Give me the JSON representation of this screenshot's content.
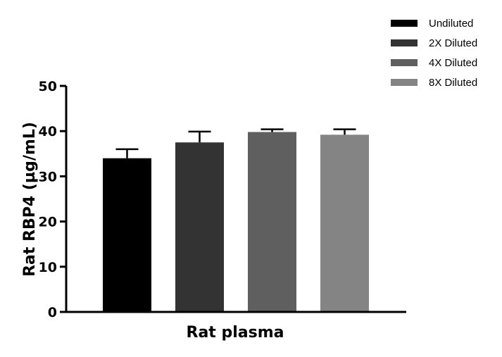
{
  "chart_data": {
    "type": "bar",
    "categories": [
      "Rat plasma"
    ],
    "series": [
      {
        "name": "Undiluted",
        "value": 34.0,
        "error": 2.0,
        "color": "#000000"
      },
      {
        "name": "2X Diluted",
        "value": 37.5,
        "error": 2.4,
        "color": "#333333"
      },
      {
        "name": "4X Diluted",
        "value": 39.8,
        "error": 0.6,
        "color": "#5f5f5f"
      },
      {
        "name": "8X Diluted",
        "value": 39.2,
        "error": 1.2,
        "color": "#848484"
      }
    ],
    "xlabel": "Rat plasma",
    "ylabel": "Rat RBP4 (µg/mL)",
    "ylim": [
      0,
      50
    ],
    "yticks": [
      0,
      10,
      20,
      30,
      40,
      50
    ],
    "legend_position": "top-right",
    "grid": false
  }
}
